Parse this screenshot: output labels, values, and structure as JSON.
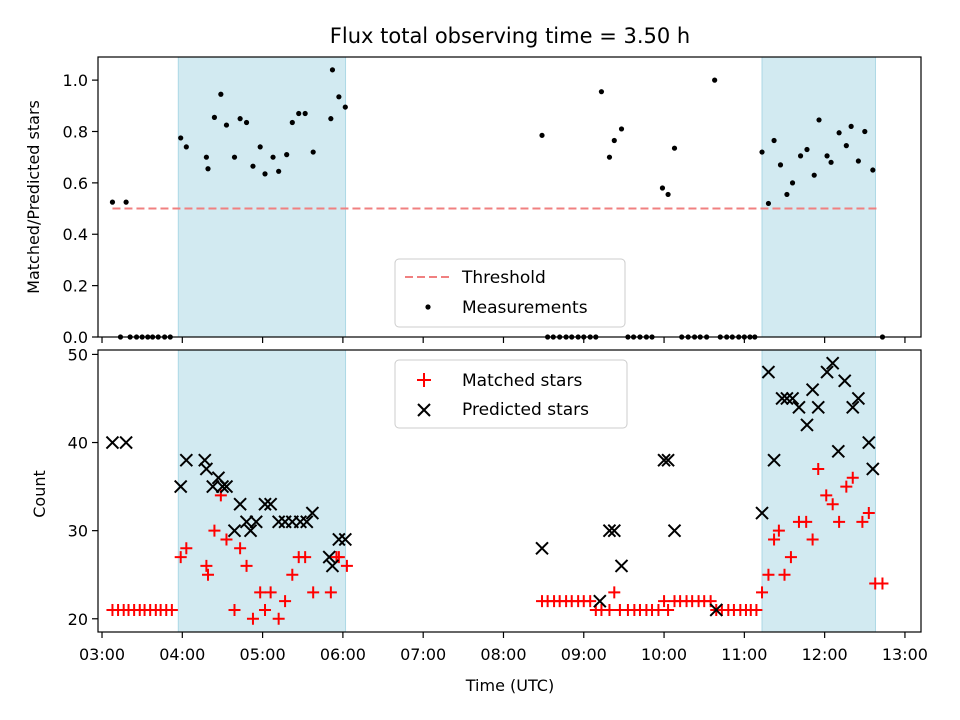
{
  "chart_data": {
    "title": "Flux total observing time = 3.50 h",
    "xlabel": "Time (UTC)",
    "xticks": [
      "03:00",
      "04:00",
      "05:00",
      "06:00",
      "07:00",
      "08:00",
      "09:00",
      "10:00",
      "11:00",
      "12:00",
      "13:00"
    ],
    "xlim_hours": [
      2.95,
      13.2
    ],
    "shaded_intervals_hours": [
      [
        3.95,
        6.033
      ],
      [
        11.22,
        12.633
      ]
    ],
    "shade_color": "#add8e6",
    "top": {
      "type": "scatter",
      "ylabel": "Matched/Predicted stars",
      "ylim": [
        0,
        1.09
      ],
      "yticks": [
        "0.0",
        "0.2",
        "0.4",
        "0.6",
        "0.8",
        "1.0"
      ],
      "threshold": {
        "name": "Threshold",
        "value": 0.5,
        "x_range": [
          3.13,
          12.65
        ],
        "color": "#f08080"
      },
      "legend": [
        "Threshold",
        "Measurements"
      ],
      "series_name": "Measurements",
      "points": [
        [
          3.13,
          0.525
        ],
        [
          3.23,
          0
        ],
        [
          3.3,
          0.525
        ],
        [
          3.35,
          0
        ],
        [
          3.43,
          0
        ],
        [
          3.5,
          0
        ],
        [
          3.57,
          0
        ],
        [
          3.63,
          0
        ],
        [
          3.7,
          0
        ],
        [
          3.78,
          0
        ],
        [
          3.85,
          0
        ],
        [
          3.98,
          0.775
        ],
        [
          4.05,
          0.74
        ],
        [
          4.3,
          0.7
        ],
        [
          4.32,
          0.655
        ],
        [
          4.4,
          0.855
        ],
        [
          4.48,
          0.945
        ],
        [
          4.55,
          0.825
        ],
        [
          4.65,
          0.7
        ],
        [
          4.72,
          0.85
        ],
        [
          4.8,
          0.835
        ],
        [
          4.88,
          0.665
        ],
        [
          4.97,
          0.74
        ],
        [
          5.03,
          0.635
        ],
        [
          5.13,
          0.7
        ],
        [
          5.2,
          0.645
        ],
        [
          5.3,
          0.71
        ],
        [
          5.37,
          0.835
        ],
        [
          5.45,
          0.87
        ],
        [
          5.53,
          0.87
        ],
        [
          5.63,
          0.72
        ],
        [
          5.85,
          0.85
        ],
        [
          5.87,
          1.04
        ],
        [
          5.95,
          0.935
        ],
        [
          6.03,
          0.895
        ],
        [
          8.48,
          0.785
        ],
        [
          8.55,
          0
        ],
        [
          8.62,
          0
        ],
        [
          8.7,
          0
        ],
        [
          8.78,
          0
        ],
        [
          8.85,
          0
        ],
        [
          8.93,
          0
        ],
        [
          9.0,
          0
        ],
        [
          9.08,
          0
        ],
        [
          9.15,
          0
        ],
        [
          9.22,
          0.955
        ],
        [
          9.32,
          0.7
        ],
        [
          9.38,
          0.765
        ],
        [
          9.47,
          0.81
        ],
        [
          9.55,
          0
        ],
        [
          9.62,
          0
        ],
        [
          9.7,
          0
        ],
        [
          9.78,
          0
        ],
        [
          9.85,
          0
        ],
        [
          9.98,
          0.58
        ],
        [
          10.05,
          0.555
        ],
        [
          10.13,
          0.735
        ],
        [
          10.22,
          0
        ],
        [
          10.3,
          0
        ],
        [
          10.38,
          0
        ],
        [
          10.45,
          0
        ],
        [
          10.53,
          0
        ],
        [
          10.63,
          1.0
        ],
        [
          10.7,
          0
        ],
        [
          10.78,
          0
        ],
        [
          10.85,
          0
        ],
        [
          10.93,
          0
        ],
        [
          11.0,
          0
        ],
        [
          11.07,
          0
        ],
        [
          11.13,
          0
        ],
        [
          11.22,
          0.72
        ],
        [
          11.3,
          0.52
        ],
        [
          11.37,
          0.765
        ],
        [
          11.45,
          0.67
        ],
        [
          11.53,
          0.555
        ],
        [
          11.6,
          0.6
        ],
        [
          11.7,
          0.705
        ],
        [
          11.78,
          0.73
        ],
        [
          11.87,
          0.63
        ],
        [
          11.93,
          0.845
        ],
        [
          12.03,
          0.705
        ],
        [
          12.08,
          0.68
        ],
        [
          12.18,
          0.795
        ],
        [
          12.27,
          0.745
        ],
        [
          12.33,
          0.82
        ],
        [
          12.42,
          0.685
        ],
        [
          12.5,
          0.8
        ],
        [
          12.6,
          0.65
        ],
        [
          12.72,
          0
        ]
      ]
    },
    "bottom": {
      "type": "scatter",
      "ylabel": "Count",
      "ylim": [
        18.5,
        50.5
      ],
      "yticks": [
        "20",
        "30",
        "40",
        "50"
      ],
      "legend": [
        "Matched stars",
        "Predicted stars"
      ],
      "series": [
        {
          "name": "Matched stars",
          "marker": "plus",
          "color": "#ff0000",
          "points": [
            [
              3.13,
              21
            ],
            [
              3.2,
              21
            ],
            [
              3.27,
              21
            ],
            [
              3.33,
              21
            ],
            [
              3.4,
              21
            ],
            [
              3.47,
              21
            ],
            [
              3.53,
              21
            ],
            [
              3.6,
              21
            ],
            [
              3.67,
              21
            ],
            [
              3.73,
              21
            ],
            [
              3.8,
              21
            ],
            [
              3.87,
              21
            ],
            [
              3.98,
              27
            ],
            [
              4.05,
              28
            ],
            [
              4.3,
              26
            ],
            [
              4.32,
              25
            ],
            [
              4.4,
              30
            ],
            [
              4.48,
              34
            ],
            [
              4.55,
              29
            ],
            [
              4.65,
              21
            ],
            [
              4.72,
              28
            ],
            [
              4.8,
              26
            ],
            [
              4.88,
              20
            ],
            [
              4.97,
              23
            ],
            [
              5.03,
              21
            ],
            [
              5.1,
              23
            ],
            [
              5.2,
              20
            ],
            [
              5.28,
              22
            ],
            [
              5.37,
              25
            ],
            [
              5.45,
              27
            ],
            [
              5.53,
              27
            ],
            [
              5.63,
              23
            ],
            [
              5.85,
              23
            ],
            [
              5.92,
              27
            ],
            [
              5.95,
              27
            ],
            [
              6.05,
              26
            ],
            [
              8.48,
              22
            ],
            [
              8.55,
              22
            ],
            [
              8.63,
              22
            ],
            [
              8.7,
              22
            ],
            [
              8.78,
              22
            ],
            [
              8.85,
              22
            ],
            [
              8.93,
              22
            ],
            [
              9.0,
              22
            ],
            [
              9.08,
              22
            ],
            [
              9.15,
              21
            ],
            [
              9.22,
              21
            ],
            [
              9.32,
              21
            ],
            [
              9.38,
              23
            ],
            [
              9.45,
              21
            ],
            [
              9.55,
              21
            ],
            [
              9.63,
              21
            ],
            [
              9.7,
              21
            ],
            [
              9.78,
              21
            ],
            [
              9.85,
              21
            ],
            [
              9.93,
              21
            ],
            [
              10.0,
              22
            ],
            [
              10.05,
              21
            ],
            [
              10.13,
              22
            ],
            [
              10.2,
              22
            ],
            [
              10.28,
              22
            ],
            [
              10.35,
              22
            ],
            [
              10.43,
              22
            ],
            [
              10.5,
              22
            ],
            [
              10.58,
              22
            ],
            [
              10.65,
              21
            ],
            [
              10.72,
              21
            ],
            [
              10.8,
              21
            ],
            [
              10.87,
              21
            ],
            [
              10.95,
              21
            ],
            [
              11.02,
              21
            ],
            [
              11.08,
              21
            ],
            [
              11.15,
              21
            ],
            [
              11.22,
              23
            ],
            [
              11.3,
              25
            ],
            [
              11.37,
              29
            ],
            [
              11.43,
              30
            ],
            [
              11.5,
              25
            ],
            [
              11.58,
              27
            ],
            [
              11.68,
              31
            ],
            [
              11.77,
              31
            ],
            [
              11.85,
              29
            ],
            [
              11.92,
              37
            ],
            [
              12.02,
              34
            ],
            [
              12.1,
              33
            ],
            [
              12.18,
              31
            ],
            [
              12.27,
              35
            ],
            [
              12.35,
              36
            ],
            [
              12.47,
              31
            ],
            [
              12.55,
              32
            ],
            [
              12.63,
              24
            ],
            [
              12.72,
              24
            ]
          ]
        },
        {
          "name": "Predicted stars",
          "marker": "x",
          "color": "#000000",
          "points": [
            [
              3.13,
              40
            ],
            [
              3.3,
              40
            ],
            [
              3.98,
              35
            ],
            [
              4.05,
              38
            ],
            [
              4.28,
              38
            ],
            [
              4.3,
              37
            ],
            [
              4.38,
              35
            ],
            [
              4.45,
              36
            ],
            [
              4.5,
              35
            ],
            [
              4.55,
              35
            ],
            [
              4.65,
              30
            ],
            [
              4.72,
              33
            ],
            [
              4.8,
              31
            ],
            [
              4.85,
              30
            ],
            [
              4.92,
              31
            ],
            [
              5.03,
              33
            ],
            [
              5.1,
              33
            ],
            [
              5.2,
              31
            ],
            [
              5.28,
              31
            ],
            [
              5.37,
              31
            ],
            [
              5.47,
              31
            ],
            [
              5.55,
              31
            ],
            [
              5.62,
              32
            ],
            [
              5.83,
              27
            ],
            [
              5.87,
              26
            ],
            [
              5.95,
              29
            ],
            [
              6.03,
              29
            ],
            [
              8.48,
              28
            ],
            [
              9.2,
              22
            ],
            [
              9.32,
              30
            ],
            [
              9.38,
              30
            ],
            [
              9.47,
              26
            ],
            [
              10.0,
              38
            ],
            [
              10.05,
              38
            ],
            [
              10.13,
              30
            ],
            [
              10.65,
              21
            ],
            [
              11.22,
              32
            ],
            [
              11.3,
              48
            ],
            [
              11.37,
              38
            ],
            [
              11.47,
              45
            ],
            [
              11.53,
              45
            ],
            [
              11.6,
              45
            ],
            [
              11.68,
              44
            ],
            [
              11.78,
              42
            ],
            [
              11.85,
              46
            ],
            [
              11.92,
              44
            ],
            [
              12.03,
              48
            ],
            [
              12.1,
              49
            ],
            [
              12.17,
              39
            ],
            [
              12.25,
              47
            ],
            [
              12.35,
              44
            ],
            [
              12.42,
              45
            ],
            [
              12.55,
              40
            ],
            [
              12.6,
              37
            ]
          ]
        }
      ]
    }
  }
}
